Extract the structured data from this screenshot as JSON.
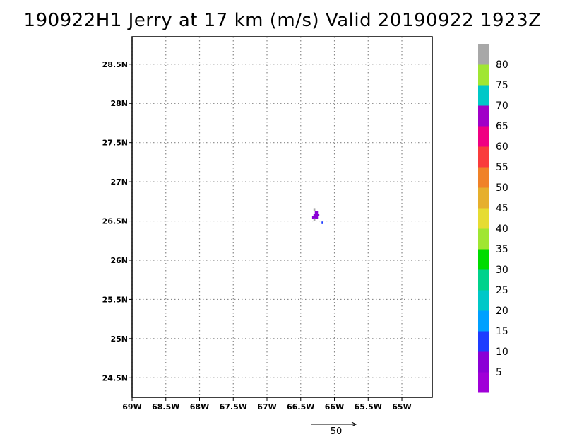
{
  "title": "190922H1 Jerry at 17 km (m/s) Valid 20190922 1923Z",
  "map": {
    "lon_range": [
      -69.0,
      -64.55
    ],
    "lat_range": [
      24.25,
      28.85
    ],
    "grid": true,
    "lon_ticks": [
      -69,
      -68.5,
      -68,
      -67.5,
      -67,
      -66.5,
      -66,
      -65.5,
      -65
    ],
    "lon_tick_labels": [
      "69W",
      "68.5W",
      "68W",
      "67.5W",
      "67W",
      "66.5W",
      "66W",
      "65.5W",
      "65W"
    ],
    "lat_ticks": [
      28.5,
      28,
      27.5,
      27,
      26.5,
      26,
      25.5,
      25,
      24.5
    ],
    "lat_tick_labels": [
      "28.5N",
      "28N",
      "27.5N",
      "27N",
      "26.5N",
      "26N",
      "25.5N",
      "25N",
      "24.5N"
    ]
  },
  "chart_data": {
    "type": "heatmap",
    "title": "190922H1 Jerry at 17 km (m/s) Valid 20190922 1923Z",
    "units": "m/s",
    "cells": [
      {
        "lon": -66.3,
        "lat": 26.65,
        "value": 82,
        "color": "#a8a8a8"
      },
      {
        "lon": -66.28,
        "lat": 26.61,
        "value": 7,
        "color": "#8a00d6"
      },
      {
        "lon": -66.26,
        "lat": 26.61,
        "value": 7,
        "color": "#8a00d6"
      },
      {
        "lon": -66.3,
        "lat": 26.58,
        "value": 7,
        "color": "#8a00d6"
      },
      {
        "lon": -66.28,
        "lat": 26.58,
        "value": 7,
        "color": "#8a00d6"
      },
      {
        "lon": -66.26,
        "lat": 26.58,
        "value": 7,
        "color": "#8a00d6"
      },
      {
        "lon": -66.24,
        "lat": 26.58,
        "value": 7,
        "color": "#8a00d6"
      },
      {
        "lon": -66.32,
        "lat": 26.55,
        "value": 7,
        "color": "#8a00d6"
      },
      {
        "lon": -66.3,
        "lat": 26.55,
        "value": 7,
        "color": "#8a00d6"
      },
      {
        "lon": -66.28,
        "lat": 26.55,
        "value": 7,
        "color": "#8a00d6"
      },
      {
        "lon": -66.26,
        "lat": 26.55,
        "value": 7,
        "color": "#8a00d6"
      },
      {
        "lon": -66.3,
        "lat": 26.52,
        "value": 82,
        "color": "#a8a8a8"
      },
      {
        "lon": -66.18,
        "lat": 26.48,
        "value": 12,
        "color": "#1e3cff"
      }
    ],
    "wind_reference_vector": {
      "label": "50"
    }
  },
  "colorbar": {
    "levels": [
      {
        "label": "",
        "color": "#a000d8"
      },
      {
        "label": "5",
        "color": "#8a00d6"
      },
      {
        "label": "10",
        "color": "#1e3cff"
      },
      {
        "label": "15",
        "color": "#00a0ff"
      },
      {
        "label": "20",
        "color": "#00c8c8"
      },
      {
        "label": "25",
        "color": "#00d28c"
      },
      {
        "label": "30",
        "color": "#00dc00"
      },
      {
        "label": "35",
        "color": "#a0e632"
      },
      {
        "label": "40",
        "color": "#e6dc32"
      },
      {
        "label": "45",
        "color": "#e6af2d"
      },
      {
        "label": "50",
        "color": "#f08228"
      },
      {
        "label": "55",
        "color": "#fa3c3c"
      },
      {
        "label": "60",
        "color": "#f00082"
      },
      {
        "label": "65",
        "color": "#a000c8"
      },
      {
        "label": "70",
        "color": "#00c8c8"
      },
      {
        "label": "75",
        "color": "#a0e632"
      },
      {
        "label": "80",
        "color": "#a8a8a8"
      }
    ]
  },
  "reference_vector": {
    "label": "50"
  }
}
